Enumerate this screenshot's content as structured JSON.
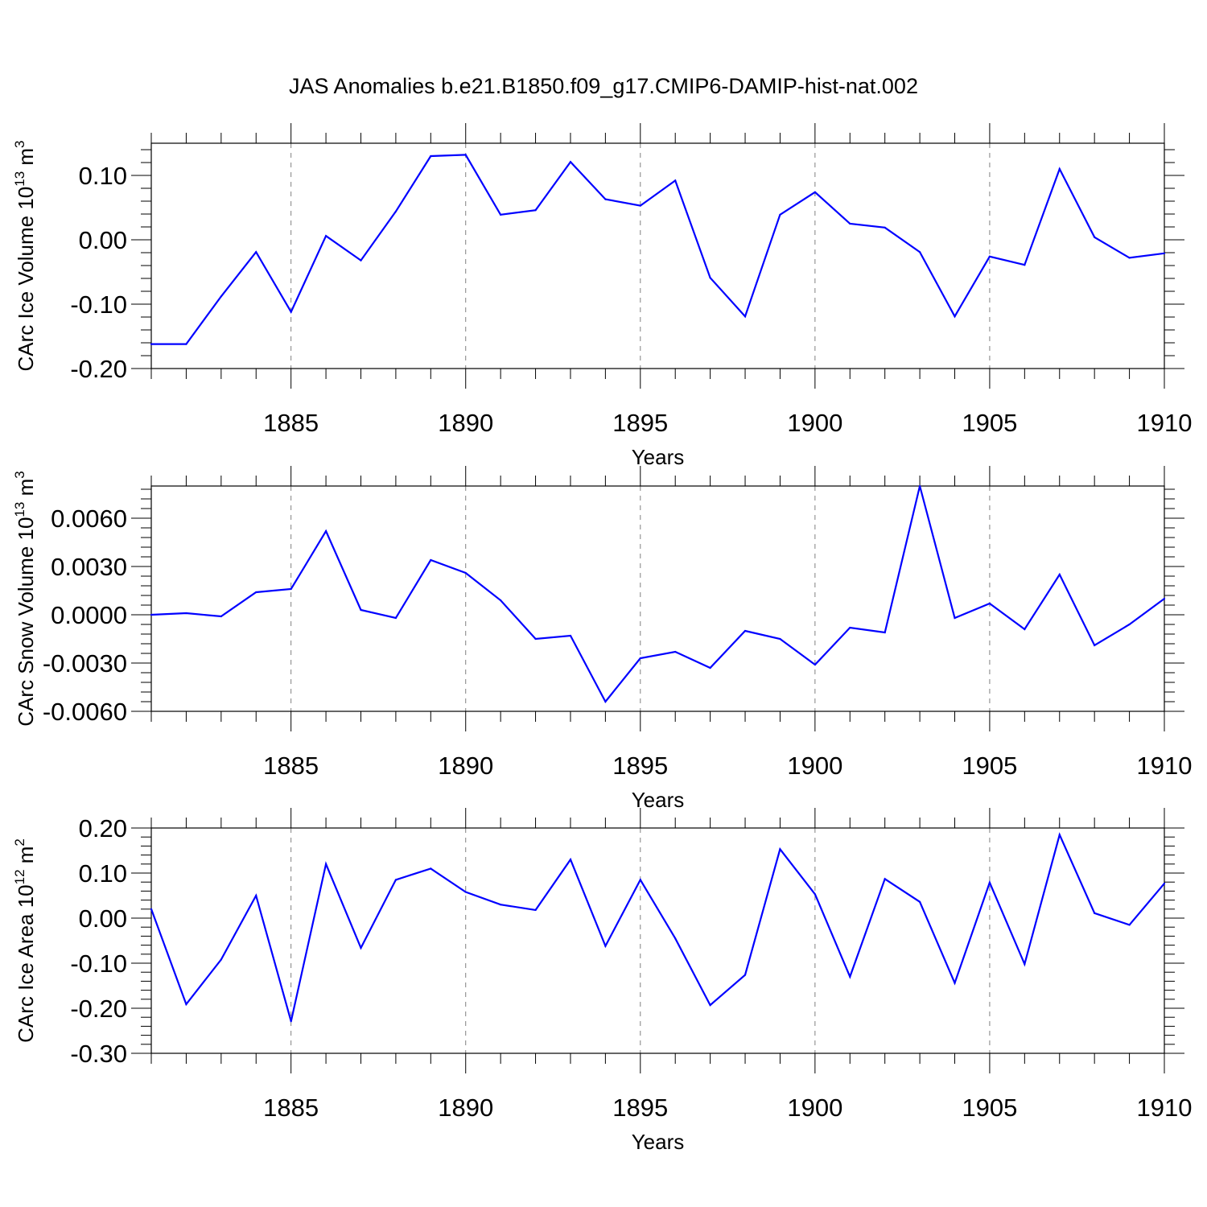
{
  "title": "JAS Anomalies b.e21.B1850.f09_g17.CMIP6-DAMIP-hist-nat.002",
  "colors": {
    "line": "#0000ff",
    "axis": "#000000",
    "grid": "#808080"
  },
  "chart_data": [
    {
      "type": "line",
      "ylabel": {
        "main": "CArc Ice Volume 10",
        "exp": "13",
        "unit": " m",
        "unit_exp": "3"
      },
      "xlabel": "Years",
      "xlim": [
        1881,
        1910
      ],
      "ylim": [
        -0.2,
        0.15
      ],
      "yticks": [
        -0.2,
        -0.1,
        0.0,
        0.1
      ],
      "ytick_labels": [
        "-0.20",
        "-0.10",
        "0.00",
        "0.10"
      ],
      "xticks": [
        1885,
        1890,
        1895,
        1900,
        1905,
        1910
      ],
      "xtick_labels": [
        "1885",
        "1890",
        "1895",
        "1900",
        "1905",
        "1910"
      ],
      "grid": "vertical dashed at major x ticks",
      "series": [
        {
          "name": "CArc Ice Volume",
          "x": [
            1881,
            1882,
            1883,
            1884,
            1885,
            1886,
            1887,
            1888,
            1889,
            1890,
            1891,
            1892,
            1893,
            1894,
            1895,
            1896,
            1897,
            1898,
            1899,
            1900,
            1901,
            1902,
            1903,
            1904,
            1905,
            1906,
            1907,
            1908,
            1909,
            1910
          ],
          "values": [
            -0.162,
            -0.162,
            -0.088,
            -0.019,
            -0.112,
            0.006,
            -0.032,
            0.044,
            0.13,
            0.132,
            0.039,
            0.046,
            0.121,
            0.063,
            0.053,
            0.092,
            -0.059,
            -0.119,
            0.039,
            0.074,
            0.025,
            0.019,
            -0.019,
            -0.119,
            -0.026,
            -0.039,
            0.11,
            0.004,
            -0.028,
            -0.021
          ]
        }
      ]
    },
    {
      "type": "line",
      "ylabel": {
        "main": "CArc Snow Volume 10",
        "exp": "13",
        "unit": " m",
        "unit_exp": "3"
      },
      "xlabel": "Years",
      "xlim": [
        1881,
        1910
      ],
      "ylim": [
        -0.006,
        0.008
      ],
      "yticks": [
        -0.006,
        -0.003,
        0.0,
        0.003,
        0.006
      ],
      "ytick_labels": [
        "-0.0060",
        "-0.0030",
        "0.0000",
        "0.0030",
        "0.0060"
      ],
      "xticks": [
        1885,
        1890,
        1895,
        1900,
        1905,
        1910
      ],
      "xtick_labels": [
        "1885",
        "1890",
        "1895",
        "1900",
        "1905",
        "1910"
      ],
      "grid": "vertical dashed at major x ticks",
      "series": [
        {
          "name": "CArc Snow Volume",
          "x": [
            1881,
            1882,
            1883,
            1884,
            1885,
            1886,
            1887,
            1888,
            1889,
            1890,
            1891,
            1892,
            1893,
            1894,
            1895,
            1896,
            1897,
            1898,
            1899,
            1900,
            1901,
            1902,
            1903,
            1904,
            1905,
            1906,
            1907,
            1908,
            1909,
            1910
          ],
          "values": [
            0.0,
            0.0001,
            -0.0001,
            0.0014,
            0.0016,
            0.0052,
            0.0003,
            -0.0002,
            0.0034,
            0.0026,
            0.0009,
            -0.0015,
            -0.0013,
            -0.0054,
            -0.0027,
            -0.0023,
            -0.0033,
            -0.001,
            -0.0015,
            -0.0031,
            -0.0008,
            -0.0011,
            0.008,
            -0.0002,
            0.0007,
            -0.0009,
            0.0025,
            -0.0019,
            -0.0006,
            0.001
          ]
        }
      ]
    },
    {
      "type": "line",
      "ylabel": {
        "main": "CArc Ice Area 10",
        "exp": "12",
        "unit": " m",
        "unit_exp": "2"
      },
      "xlabel": "Years",
      "xlim": [
        1881,
        1910
      ],
      "ylim": [
        -0.3,
        0.2
      ],
      "yticks": [
        -0.3,
        -0.2,
        -0.1,
        0.0,
        0.1,
        0.2
      ],
      "ytick_labels": [
        "-0.30",
        "-0.20",
        "-0.10",
        "0.00",
        "0.10",
        "0.20"
      ],
      "xticks": [
        1885,
        1890,
        1895,
        1900,
        1905,
        1910
      ],
      "xtick_labels": [
        "1885",
        "1890",
        "1895",
        "1900",
        "1905",
        "1910"
      ],
      "grid": "vertical dashed at major x ticks",
      "series": [
        {
          "name": "CArc Ice Area",
          "x": [
            1881,
            1882,
            1883,
            1884,
            1885,
            1886,
            1887,
            1888,
            1889,
            1890,
            1891,
            1892,
            1893,
            1894,
            1895,
            1896,
            1897,
            1898,
            1899,
            1900,
            1901,
            1902,
            1903,
            1904,
            1905,
            1906,
            1907,
            1908,
            1909,
            1910
          ],
          "values": [
            0.02,
            -0.191,
            -0.092,
            0.05,
            -0.229,
            0.12,
            -0.066,
            0.085,
            0.11,
            0.058,
            0.03,
            0.018,
            0.13,
            -0.062,
            0.085,
            -0.045,
            -0.193,
            -0.126,
            0.153,
            0.053,
            -0.13,
            0.087,
            0.036,
            -0.144,
            0.079,
            -0.102,
            0.185,
            0.011,
            -0.015,
            0.077
          ]
        }
      ]
    }
  ]
}
